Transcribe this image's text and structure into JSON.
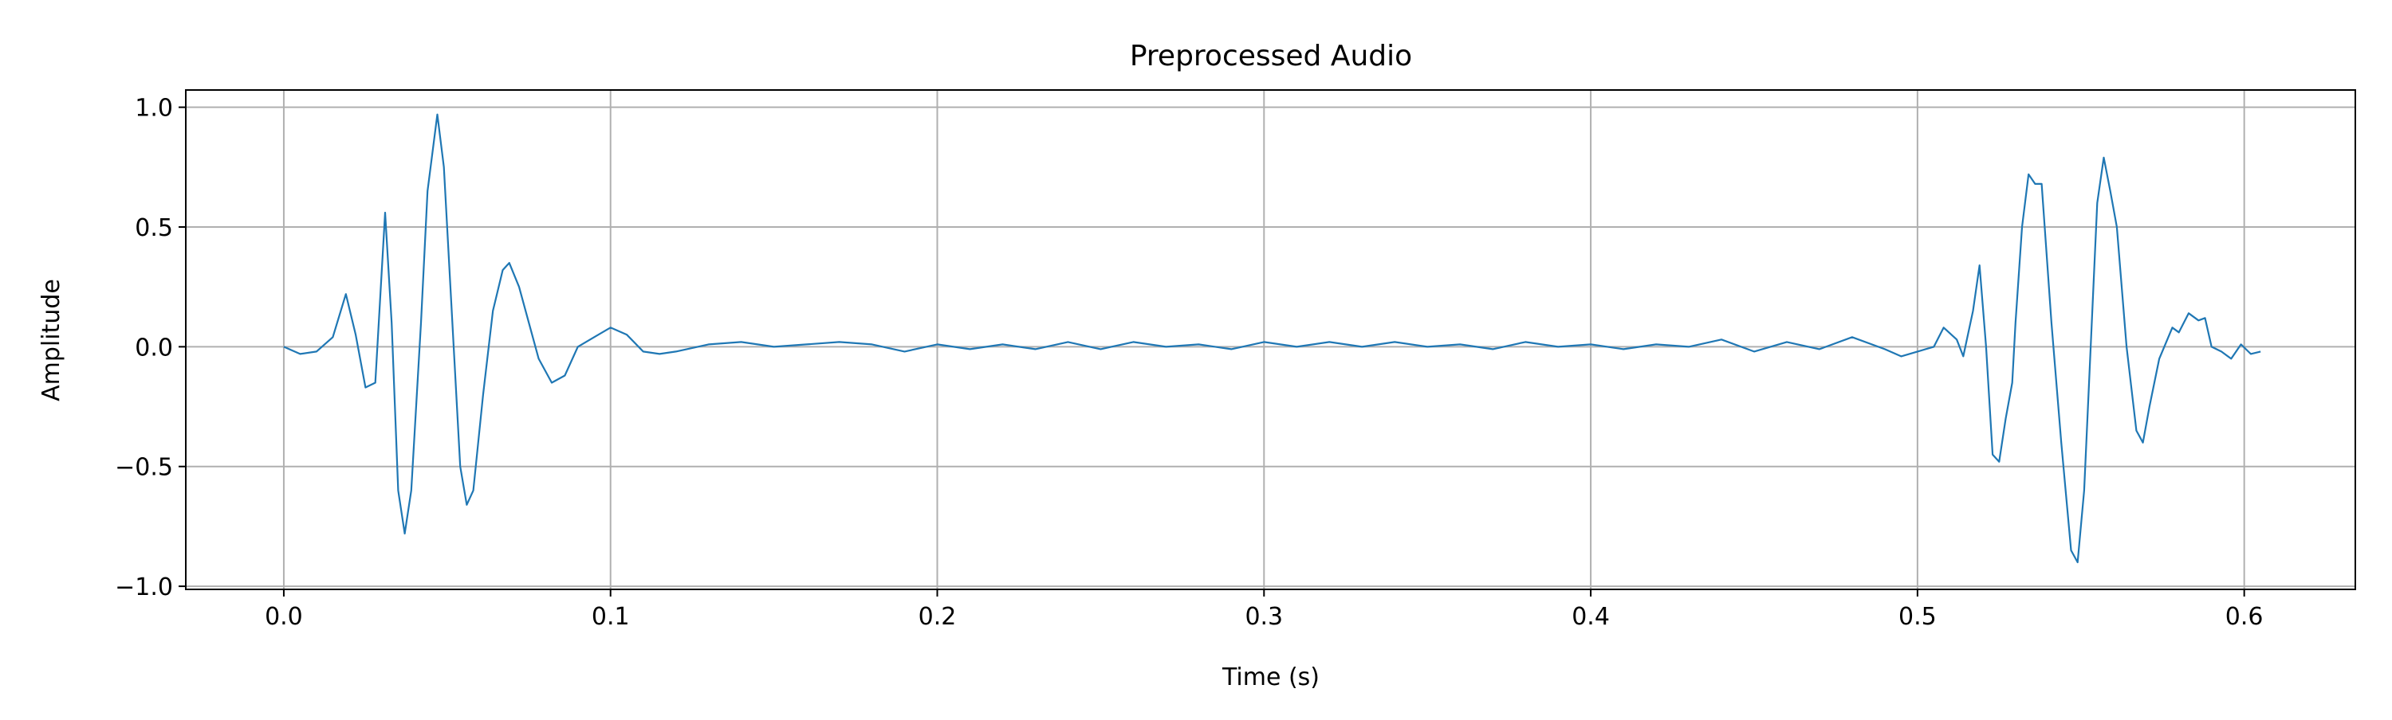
{
  "chart_data": {
    "type": "line",
    "title": "Preprocessed Audio",
    "xlabel": "Time (s)",
    "ylabel": "Amplitude",
    "color": "#1f77b4",
    "grid": true,
    "xlim": [
      -0.03,
      0.634
    ],
    "ylim": [
      -1.013,
      1.072
    ],
    "xticks": [
      {
        "value": 0,
        "label": "0.0"
      },
      0.1,
      0.2,
      0.3,
      0.4,
      0.5,
      0.6
    ],
    "yticks": [
      {
        "value": -1,
        "label": "−1.0"
      },
      {
        "value": -0.5,
        "label": "−0.5"
      },
      {
        "value": 0,
        "label": "0.0"
      },
      0.5,
      {
        "value": 1,
        "label": "1.0"
      }
    ],
    "x": [
      0.0,
      0.005,
      0.01,
      0.015,
      0.019,
      0.022,
      0.025,
      0.028,
      0.031,
      0.033,
      0.035,
      0.037,
      0.039,
      0.042,
      0.044,
      0.047,
      0.049,
      0.052,
      0.054,
      0.056,
      0.058,
      0.061,
      0.064,
      0.067,
      0.069,
      0.072,
      0.075,
      0.078,
      0.082,
      0.086,
      0.09,
      0.095,
      0.1,
      0.105,
      0.11,
      0.115,
      0.12,
      0.13,
      0.14,
      0.15,
      0.16,
      0.17,
      0.18,
      0.19,
      0.2,
      0.21,
      0.22,
      0.23,
      0.24,
      0.25,
      0.26,
      0.27,
      0.28,
      0.29,
      0.3,
      0.31,
      0.32,
      0.33,
      0.34,
      0.35,
      0.36,
      0.37,
      0.38,
      0.39,
      0.4,
      0.41,
      0.42,
      0.43,
      0.44,
      0.45,
      0.46,
      0.47,
      0.48,
      0.49,
      0.495,
      0.5,
      0.505,
      0.508,
      0.512,
      0.514,
      0.517,
      0.519,
      0.521,
      0.523,
      0.525,
      0.527,
      0.529,
      0.53,
      0.532,
      0.534,
      0.536,
      0.538,
      0.541,
      0.544,
      0.547,
      0.549,
      0.551,
      0.553,
      0.555,
      0.557,
      0.559,
      0.561,
      0.564,
      0.567,
      0.569,
      0.571,
      0.574,
      0.578,
      0.58,
      0.583,
      0.586,
      0.588,
      0.59,
      0.593,
      0.596,
      0.599,
      0.602,
      0.605
    ],
    "values": [
      0,
      -0.03,
      -0.02,
      0.04,
      0.22,
      0.05,
      -0.17,
      -0.15,
      0.56,
      0.1,
      -0.6,
      -0.78,
      -0.6,
      0.1,
      0.65,
      0.97,
      0.75,
      0.0,
      -0.5,
      -0.66,
      -0.6,
      -0.2,
      0.15,
      0.32,
      0.35,
      0.25,
      0.1,
      -0.05,
      -0.15,
      -0.12,
      0.0,
      0.04,
      0.08,
      0.05,
      -0.02,
      -0.03,
      -0.02,
      0.01,
      0.02,
      0.0,
      0.01,
      0.02,
      0.01,
      -0.02,
      0.01,
      -0.01,
      0.01,
      -0.01,
      0.02,
      -0.01,
      0.02,
      0.0,
      0.01,
      -0.01,
      0.02,
      0.0,
      0.02,
      0.0,
      0.02,
      0.0,
      0.01,
      -0.01,
      0.02,
      0.0,
      0.01,
      -0.01,
      0.01,
      0.0,
      0.03,
      -0.02,
      0.02,
      -0.01,
      0.04,
      -0.01,
      -0.04,
      -0.02,
      0.0,
      0.08,
      0.03,
      -0.04,
      0.15,
      0.34,
      0.0,
      -0.45,
      -0.48,
      -0.3,
      -0.15,
      0.1,
      0.5,
      0.72,
      0.68,
      0.68,
      0.1,
      -0.4,
      -0.85,
      -0.9,
      -0.6,
      0.0,
      0.6,
      0.79,
      0.65,
      0.5,
      0.0,
      -0.35,
      -0.4,
      -0.25,
      -0.05,
      0.08,
      0.06,
      0.14,
      0.11,
      0.12,
      0.0,
      -0.02,
      -0.05,
      0.01,
      -0.03,
      -0.02
    ]
  }
}
